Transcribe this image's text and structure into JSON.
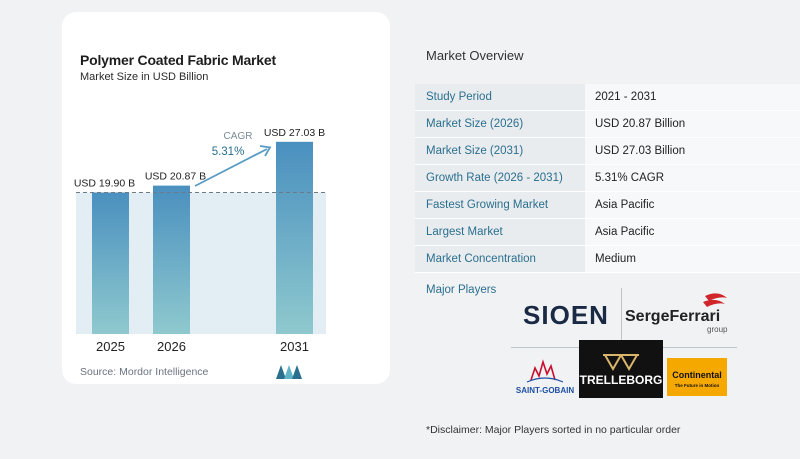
{
  "chart": {
    "title": "Polymer Coated Fabric Market",
    "subtitle": "Market Size in USD Billion",
    "source": "Source:  Mordor Intelligence",
    "cagr_label": "CAGR",
    "cagr_value": "5.31%",
    "colors": {
      "bar_dark": "#4a90bf",
      "bar_light": "#8fc9ce",
      "background_band": "#e3eef4",
      "dashed": "#6e7b86"
    }
  },
  "chart_data": {
    "type": "bar",
    "categories": [
      "2025",
      "2026",
      "2031"
    ],
    "values": [
      19.9,
      20.87,
      27.03
    ],
    "data_labels": [
      "USD 19.90 B",
      "USD 20.87 B",
      "USD 27.03 B"
    ],
    "title": "Polymer Coated Fabric Market",
    "subtitle": "Market Size in USD Billion",
    "xlabel": "",
    "ylabel": "",
    "ylim": [
      0,
      30
    ],
    "grid": false,
    "annotations": [
      "CAGR",
      "5.31%"
    ]
  },
  "overview": {
    "title": "Market Overview",
    "rows": [
      {
        "label": "Study Period",
        "value": "2021 - 2031"
      },
      {
        "label": "Market Size (2026)",
        "value": "USD 20.87 Billion"
      },
      {
        "label": "Market Size (2031)",
        "value": "USD 27.03 Billion"
      },
      {
        "label": "Growth Rate (2026 - 2031)",
        "value": "5.31% CAGR"
      },
      {
        "label": "Fastest Growing Market",
        "value": "Asia Pacific"
      },
      {
        "label": "Largest Market",
        "value": "Asia Pacific"
      },
      {
        "label": "Market Concentration",
        "value": "Medium"
      }
    ],
    "players_label": "Major Players",
    "players": [
      "SIOEN",
      "SergeFerrari",
      "SAINT-GOBAIN",
      "TRELLEBORG",
      "Continental"
    ],
    "serge_sub": "group",
    "conti_sub": "The Future in Motion",
    "disclaimer": "*Disclaimer: Major Players sorted in no particular order"
  }
}
